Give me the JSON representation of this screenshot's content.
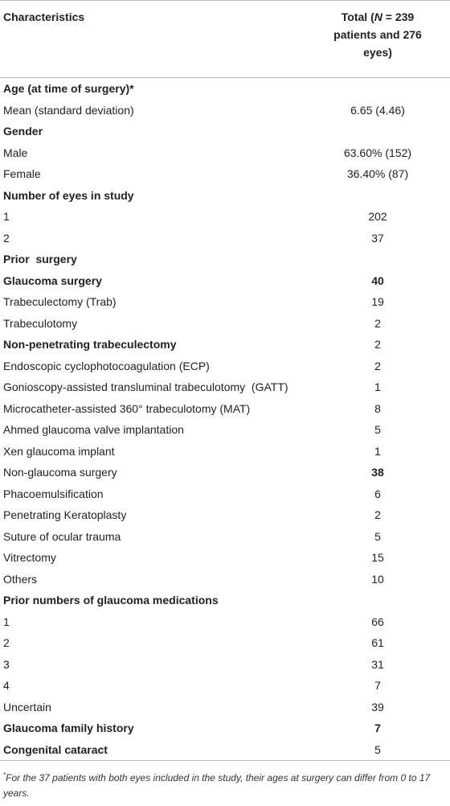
{
  "header": {
    "col1": "Characteristics",
    "col2": [
      "Total (",
      "N",
      " = 239 patients and 276 eyes)"
    ]
  },
  "table": {
    "rows": [
      [
        "Age (at time of surgery)*"
      ],
      [
        "Mean (standard deviation)",
        "6.65 (4.46)"
      ],
      [
        "Gender"
      ],
      [
        "Male",
        "63.60% (152)"
      ],
      [
        "Female",
        "36.40% (87)"
      ],
      [
        "Number of eyes in study"
      ],
      [
        "1",
        "202"
      ],
      [
        "2",
        "37"
      ],
      [
        "Prior  surgery"
      ],
      [
        "Glaucoma surgery",
        "40"
      ],
      [
        "Trabeculectomy (Trab)",
        "19"
      ],
      [
        "Trabeculotomy",
        "2"
      ],
      [
        "Non-penetrating trabeculectomy",
        "2"
      ],
      [
        "Endoscopic cyclophotocoagulation (ECP)",
        "2"
      ],
      [
        "Gonioscopy-assisted transluminal trabeculotomy  (GATT)",
        "1"
      ],
      [
        "Microcatheter-assisted 360° trabeculotomy (MAT)",
        "8"
      ],
      [
        "Ahmed glaucoma valve implantation",
        "5"
      ],
      [
        "Xen glaucoma implant",
        "1"
      ],
      [
        "Non-glaucoma surgery",
        "38"
      ],
      [
        "Phacoemulsification",
        "6"
      ],
      [
        "Penetrating Keratoplasty",
        "2"
      ],
      [
        "Suture of ocular trauma",
        "5"
      ],
      [
        "Vitrectomy",
        "15"
      ],
      [
        "Others",
        "10"
      ],
      [
        "Prior numbers of glaucoma medications"
      ],
      [
        "1",
        "66"
      ],
      [
        "2",
        "61"
      ],
      [
        "3",
        "31"
      ],
      [
        "4",
        "7"
      ],
      [
        "Uncertain",
        "39"
      ],
      [
        "Glaucoma family history",
        "7"
      ],
      [
        "Congenital cataract",
        "5"
      ]
    ]
  },
  "footnote": {
    "marker": "*",
    "text": "For the 37 patients with both eyes included in the study, their ages at surgery can differ from 0 to 17 years."
  }
}
